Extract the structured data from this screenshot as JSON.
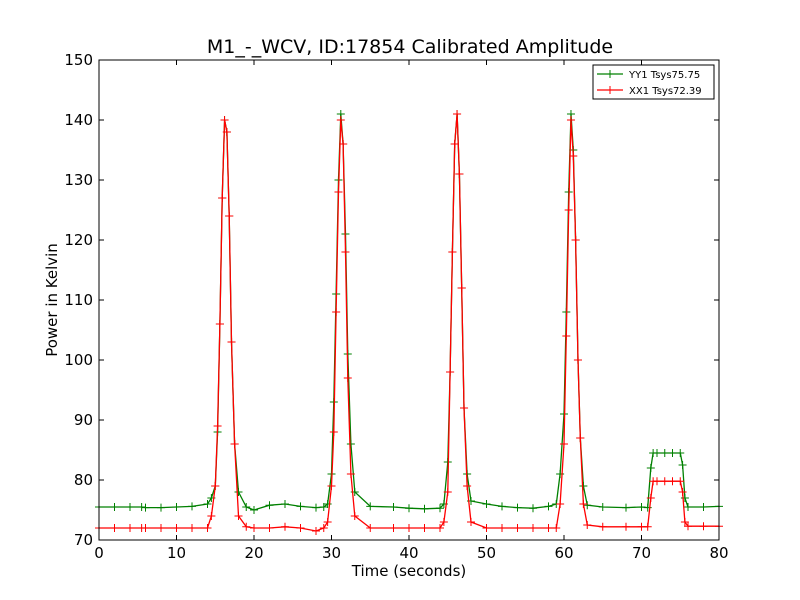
{
  "chart_data": {
    "type": "line",
    "title": "M1_-_WCV, ID:17854 Calibrated Amplitude",
    "xlabel": "Time (seconds)",
    "ylabel": "Power in Kelvin",
    "xlim": [
      0,
      80
    ],
    "ylim": [
      70,
      150
    ],
    "xticks": [
      "0",
      "10",
      "20",
      "30",
      "40",
      "50",
      "60",
      "70",
      "80"
    ],
    "yticks": [
      "70",
      "80",
      "90",
      "100",
      "110",
      "120",
      "130",
      "140",
      "150"
    ],
    "grid": false,
    "legend_position": "top-right",
    "marker": "+",
    "series": [
      {
        "name": "YY1 Tsys75.75",
        "color": "#008000",
        "x": [
          0,
          2,
          4,
          5.5,
          6,
          8,
          10,
          12,
          14,
          14.5,
          15,
          15.3,
          15.6,
          15.9,
          16.2,
          16.5,
          16.8,
          17.1,
          17.5,
          18,
          19,
          20,
          22,
          24,
          26,
          28,
          29,
          29.5,
          30,
          30.3,
          30.6,
          30.9,
          31.2,
          31.5,
          31.8,
          32.1,
          32.5,
          33,
          35,
          38,
          40,
          42,
          44,
          44.5,
          45,
          45.3,
          45.6,
          45.9,
          46.2,
          46.5,
          46.8,
          47.1,
          47.5,
          48,
          50,
          52,
          54,
          56,
          58,
          59,
          59.5,
          60,
          60.3,
          60.6,
          60.9,
          61.2,
          61.5,
          61.8,
          62.1,
          62.5,
          63,
          65,
          68,
          70,
          70.8,
          71.2,
          71.5,
          72,
          73,
          74,
          75,
          75.3,
          75.6,
          76,
          78,
          80
        ],
        "y": [
          75.5,
          75.5,
          75.5,
          75.5,
          75.4,
          75.4,
          75.5,
          75.6,
          76,
          77,
          79,
          88,
          106,
          127,
          140,
          138,
          124,
          103,
          86,
          78,
          75.5,
          75,
          75.8,
          76,
          75.6,
          75.4,
          75.5,
          76,
          81,
          93,
          111,
          130,
          141,
          136,
          121,
          101,
          86,
          78,
          75.6,
          75.5,
          75.3,
          75.2,
          75.3,
          76,
          83,
          98,
          118,
          136,
          141,
          131,
          112,
          92,
          81,
          76.5,
          76,
          75.6,
          75.4,
          75.3,
          75.6,
          76,
          81,
          91,
          108,
          128,
          141,
          135,
          120,
          100,
          87,
          79,
          75.8,
          75.5,
          75.4,
          75.5,
          75.4,
          82,
          84.5,
          84.5,
          84.5,
          84.5,
          84.5,
          82.5,
          77,
          75.5,
          75.5,
          75.6
        ]
      },
      {
        "name": "XX1 Tsys72.39",
        "color": "#ff0000",
        "x": [
          0,
          2,
          4,
          5.5,
          6,
          8,
          10,
          12,
          14,
          14.5,
          15,
          15.3,
          15.6,
          15.9,
          16.2,
          16.5,
          16.8,
          17.1,
          17.5,
          18,
          19,
          20,
          22,
          24,
          26,
          28,
          29,
          29.5,
          30,
          30.3,
          30.6,
          30.9,
          31.2,
          31.5,
          31.8,
          32.1,
          32.5,
          33,
          35,
          38,
          40,
          42,
          44,
          44.5,
          45,
          45.3,
          45.6,
          45.9,
          46.2,
          46.5,
          46.8,
          47.1,
          47.5,
          48,
          50,
          52,
          54,
          56,
          58,
          59,
          59.5,
          60,
          60.3,
          60.6,
          60.9,
          61.2,
          61.5,
          61.8,
          62.1,
          62.5,
          63,
          65,
          68,
          70,
          70.8,
          71.2,
          71.5,
          72,
          73,
          74,
          75,
          75.3,
          75.6,
          76,
          78,
          80
        ],
        "y": [
          72,
          72,
          72,
          72,
          72,
          72,
          72,
          72,
          72,
          74,
          79,
          89,
          106,
          127,
          140,
          138,
          124,
          103,
          86,
          74,
          72.2,
          72,
          72,
          72.2,
          72,
          71.5,
          72,
          73,
          79,
          88,
          108,
          128,
          140,
          136,
          118,
          97,
          81,
          74,
          72,
          72,
          72,
          72,
          72,
          73,
          78,
          98,
          118,
          136,
          141,
          131,
          112,
          92,
          79,
          73,
          72,
          72,
          72,
          72,
          72,
          72,
          76,
          86,
          104,
          125,
          140,
          134,
          120,
          100,
          87,
          76,
          72.5,
          72.2,
          72.2,
          72.2,
          72.2,
          77,
          79.8,
          79.8,
          79.8,
          79.8,
          79.8,
          78,
          73,
          72.3,
          72.3,
          72.3
        ]
      }
    ]
  }
}
